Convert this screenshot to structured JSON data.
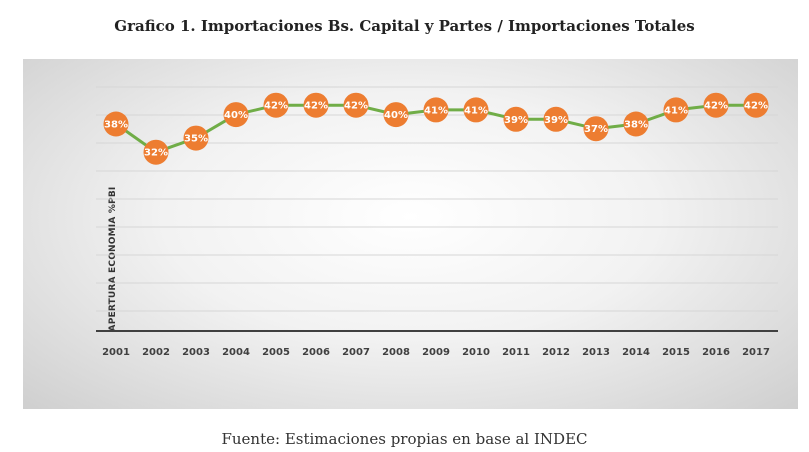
{
  "chart_data": {
    "type": "line",
    "title": "Grafico 1. Importaciones Bs. Capital y Partes / Importaciones Totales",
    "ylabel": "APERTURA ECONOMIA %PBI",
    "xlabel": "",
    "categories": [
      "2001",
      "2002",
      "2003",
      "2004",
      "2005",
      "2006",
      "2007",
      "2008",
      "2009",
      "2010",
      "2011",
      "2012",
      "2013",
      "2014",
      "2015",
      "2016",
      "2017"
    ],
    "values": [
      38,
      32,
      35,
      40,
      42,
      42,
      42,
      40,
      41,
      41,
      39,
      39,
      37,
      38,
      41,
      42,
      42
    ],
    "data_labels": [
      "38%",
      "32%",
      "35%",
      "40%",
      "42%",
      "42%",
      "42%",
      "40%",
      "41%",
      "41%",
      "39%",
      "39%",
      "37%",
      "38%",
      "41%",
      "42%",
      "42%"
    ],
    "grid": true,
    "legend": "none",
    "colors": {
      "line": "#70ad47",
      "marker": "#ed7d31",
      "marker_text": "#ffffff"
    }
  },
  "caption": "Fuente: Estimaciones propias en base al INDEC"
}
